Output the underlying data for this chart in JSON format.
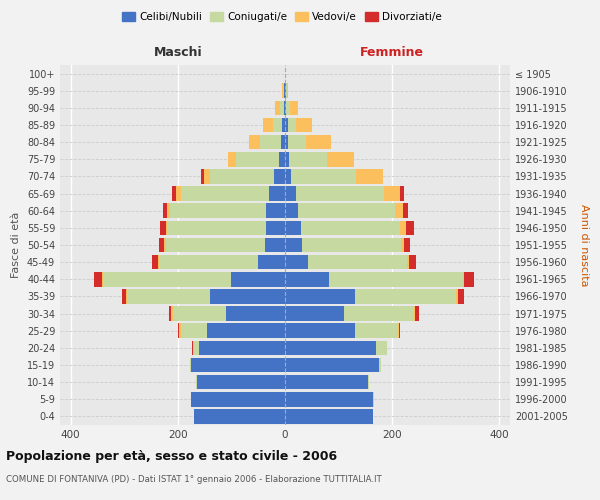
{
  "age_groups": [
    "100+",
    "95-99",
    "90-94",
    "85-89",
    "80-84",
    "75-79",
    "70-74",
    "65-69",
    "60-64",
    "55-59",
    "50-54",
    "45-49",
    "40-44",
    "35-39",
    "30-34",
    "25-29",
    "20-24",
    "15-19",
    "10-14",
    "5-9",
    "0-4"
  ],
  "birth_years": [
    "≤ 1905",
    "1906-1910",
    "1911-1915",
    "1916-1920",
    "1921-1925",
    "1926-1930",
    "1931-1935",
    "1936-1940",
    "1941-1945",
    "1946-1950",
    "1951-1955",
    "1956-1960",
    "1961-1965",
    "1966-1970",
    "1971-1975",
    "1976-1980",
    "1981-1985",
    "1986-1990",
    "1991-1995",
    "1996-2000",
    "2001-2005"
  ],
  "male": {
    "celibi": [
      0,
      1,
      2,
      5,
      7,
      12,
      20,
      30,
      35,
      35,
      38,
      50,
      100,
      140,
      110,
      145,
      160,
      175,
      165,
      175,
      170
    ],
    "coniugati": [
      0,
      2,
      8,
      18,
      40,
      80,
      120,
      165,
      180,
      185,
      185,
      185,
      240,
      155,
      100,
      50,
      10,
      3,
      1,
      1,
      0
    ],
    "vedovi": [
      0,
      2,
      8,
      18,
      20,
      15,
      12,
      8,
      5,
      3,
      3,
      2,
      2,
      2,
      2,
      3,
      2,
      0,
      0,
      0,
      0
    ],
    "divorziati": [
      0,
      0,
      0,
      0,
      0,
      0,
      5,
      8,
      8,
      10,
      10,
      12,
      15,
      8,
      5,
      2,
      2,
      0,
      0,
      0,
      0
    ]
  },
  "female": {
    "nubili": [
      0,
      1,
      2,
      5,
      5,
      8,
      12,
      20,
      25,
      30,
      32,
      42,
      82,
      130,
      110,
      130,
      170,
      175,
      155,
      165,
      165
    ],
    "coniugate": [
      0,
      2,
      8,
      15,
      35,
      70,
      120,
      165,
      180,
      185,
      185,
      185,
      250,
      190,
      130,
      80,
      20,
      5,
      2,
      1,
      0
    ],
    "vedove": [
      0,
      3,
      15,
      30,
      45,
      50,
      50,
      30,
      15,
      10,
      5,
      5,
      3,
      2,
      2,
      2,
      0,
      0,
      0,
      0,
      0
    ],
    "divorziate": [
      0,
      0,
      0,
      0,
      0,
      0,
      0,
      8,
      10,
      15,
      12,
      12,
      18,
      12,
      8,
      3,
      0,
      0,
      0,
      0,
      0
    ]
  },
  "colors": {
    "celibi": "#4472C4",
    "coniugati": "#c5d9a0",
    "vedovi": "#fbbf5e",
    "divorziati": "#d42b2b"
  },
  "xlim": 420,
  "title": "Popolazione per età, sesso e stato civile - 2006",
  "subtitle": "COMUNE DI FONTANIVA (PD) - Dati ISTAT 1° gennaio 2006 - Elaborazione TUTTITALIA.IT",
  "ylabel_left": "Fasce di età",
  "ylabel_right": "Anni di nascita",
  "xlabel_left": "Maschi",
  "xlabel_right": "Femmine",
  "bg_color": "#f2f2f2",
  "plot_bg": "#e8e8e8"
}
